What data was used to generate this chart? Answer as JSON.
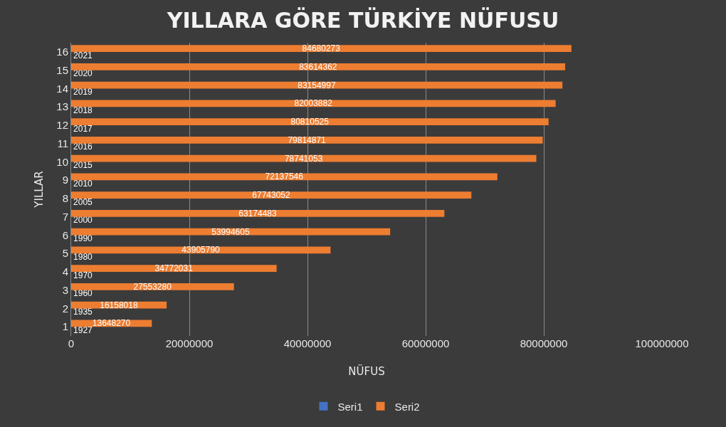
{
  "chart_data": {
    "type": "bar",
    "orientation": "horizontal",
    "title": "YILLARA GÖRE TÜRKİYE NÜFUSU",
    "xlabel": "NÜFUS",
    "ylabel": "YILLAR",
    "categories": [
      "16",
      "15",
      "14",
      "13",
      "12",
      "11",
      "10",
      "9",
      "8",
      "7",
      "6",
      "5",
      "4",
      "3",
      "2",
      "1"
    ],
    "series": [
      {
        "name": "Seri1",
        "color": "#4472c4",
        "values": [
          2021,
          2020,
          2019,
          2018,
          2017,
          2016,
          2015,
          2010,
          2005,
          2000,
          1990,
          1980,
          1970,
          1960,
          1935,
          1927
        ]
      },
      {
        "name": "Seri2",
        "color": "#ed7d31",
        "values": [
          84680273,
          83614362,
          83154997,
          82003882,
          80810525,
          79814871,
          78741053,
          72137546,
          67743052,
          63174483,
          53994605,
          43905790,
          34772031,
          27553280,
          16158018,
          13648270
        ]
      }
    ],
    "xlim": [
      0,
      100000000
    ],
    "xticks": [
      0,
      20000000,
      40000000,
      60000000,
      80000000,
      100000000
    ],
    "grid": "x",
    "legend": "bottom",
    "data_labels": true
  }
}
